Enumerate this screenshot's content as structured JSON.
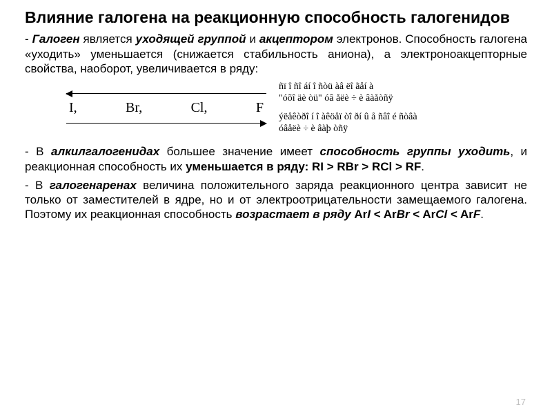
{
  "title": "Влияние галогена на реакционную способность галогенидов",
  "para1_prefix": "- ",
  "para1_em1": "Галоген",
  "para1_mid1": " является ",
  "para1_strong1": "уходящей группой",
  "para1_mid2": " и ",
  "para1_strong2": "акцептором",
  "para1_tail": " электронов. Способность галогена «уходить» уменьшается (снижается стабильность аниона), а электроноакцепторные свойства, наоборот, увеличивается в ряду:",
  "halogens": {
    "h1": "I,",
    "h2": "Br,",
    "h3": "Cl,",
    "h4": "F"
  },
  "side_top1": "ñï î ñî áí î ñòü àâ ëî ãåí à",
  "side_top2": "\"óõî äè òü\" óâ åëè ÷ è âàåòñÿ",
  "side_bot1": "ýëåêòðî í î àêöåï òî ðí û å ñâî é ñòâà",
  "side_bot2": "óâåëè ÷ è âàþ òñÿ",
  "para2_prefix": "- В ",
  "para2_strong1": "алкилгалогенидах",
  "para2_mid1": " большее значение имеет ",
  "para2_strong2": "способность группы уходить",
  "para2_mid2": ", и реакционная способность их ",
  "para2_strong3": "уменьшается в ряду: RI > RBr > RCl > RF",
  "para2_tail": ".",
  "para3_prefix": "- В ",
  "para3_strong1": "галогенаренах",
  "para3_mid1": " величина положительного заряда реакционного центра зависит не только от заместителей в ядре, но и от электроотрицательности замещаемого галогена. Поэтому их реакционная способность ",
  "para3_strong2": "возрастает в ряду",
  "para3_tail_prefix": " Ar",
  "ar_I": "I",
  "lt1": " < Ar",
  "ar_Br": "Br",
  "lt2": " < Ar",
  "ar_Cl": "Cl",
  "lt3": " < Ar",
  "ar_F": "F",
  "para3_dot": ".",
  "page_number": "17"
}
